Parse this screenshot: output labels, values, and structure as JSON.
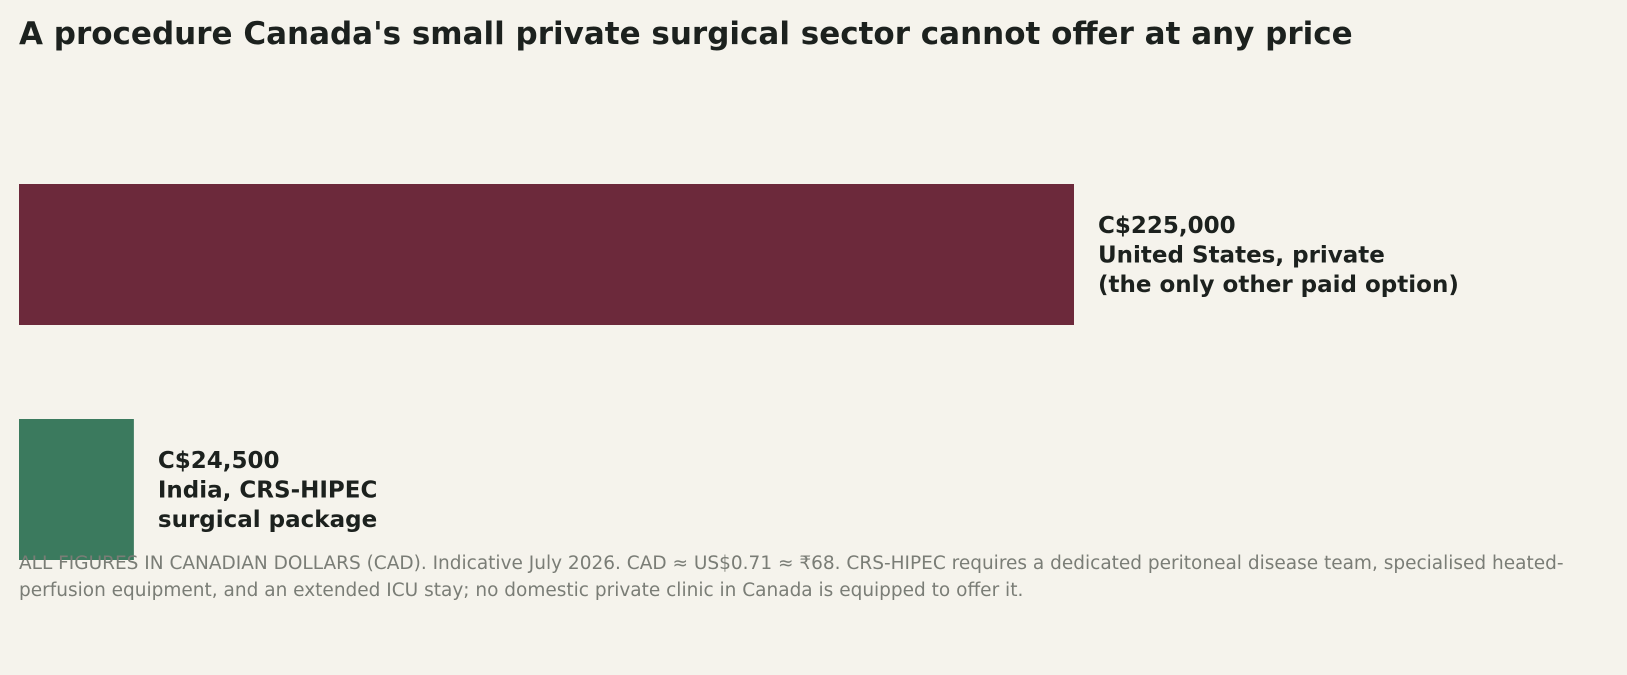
{
  "title": "A procedure Canada's small private surgical sector cannot offer at any price",
  "footnote": "ALL FIGURES IN CANADIAN DOLLARS (CAD). Indicative July 2026. CAD ≈ US$0.71 ≈ ₹68. CRS-HIPEC requires a dedicated peritoneal disease team, specialised heated-perfusion equipment, and an extended ICU stay; no domestic private clinic in Canada is equipped to offer it.",
  "chart_data": {
    "type": "bar",
    "orientation": "horizontal",
    "title": "A procedure Canada's small private surgical sector cannot offer at any price",
    "xlabel": "",
    "ylabel": "",
    "xlim": [
      0,
      225000
    ],
    "grid": false,
    "legend": "none",
    "unit": "CAD",
    "bars": [
      {
        "value": 225000,
        "value_label": "C$225,000",
        "label_lines": [
          "United States, private",
          "(the only other paid option)"
        ],
        "color": "#6c293b"
      },
      {
        "value": 24500,
        "value_label": "C$24,500",
        "label_lines": [
          "India, CRS-HIPEC",
          "surgical package"
        ],
        "color": "#3b7a5e"
      }
    ]
  }
}
